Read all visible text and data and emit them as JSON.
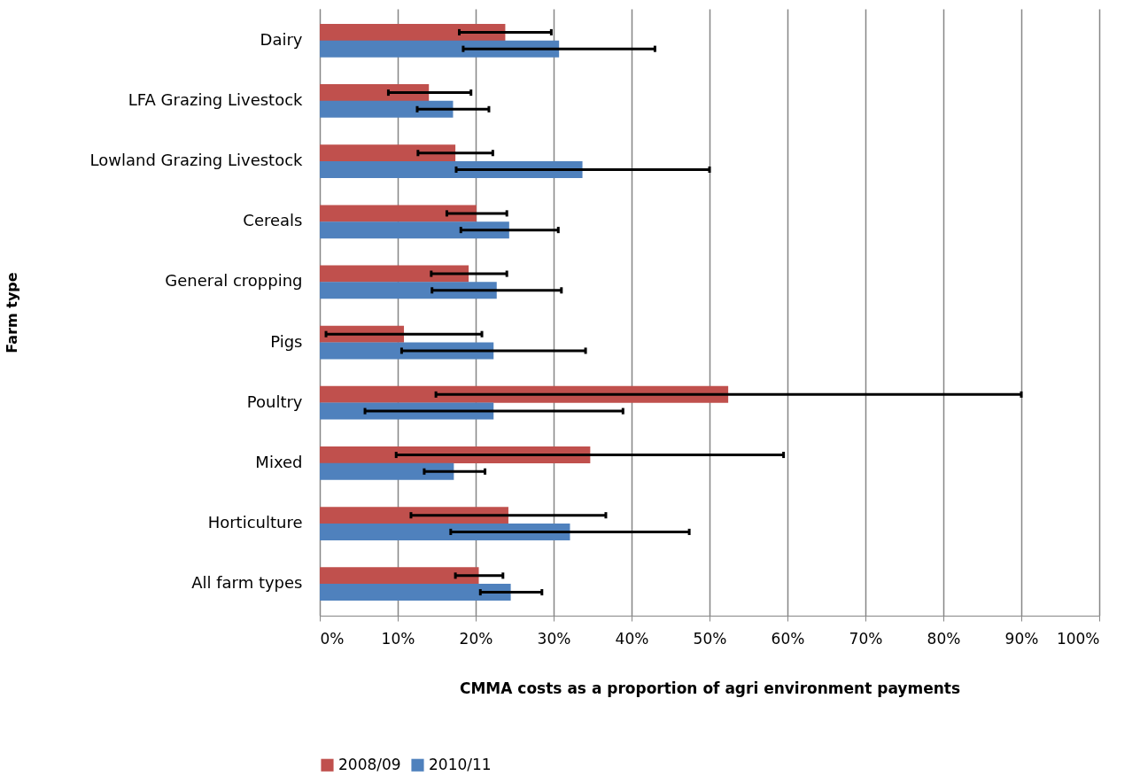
{
  "chart_data": {
    "type": "bar",
    "orientation": "horizontal",
    "xlabel": "CMMA costs as a proportion of agri environment payments",
    "ylabel": "Farm type",
    "categories": [
      "Dairy",
      "LFA Grazing Livestock",
      "Lowland Grazing Livestock",
      "Cereals",
      "General cropping",
      "Pigs",
      "Poultry",
      "Mixed",
      "Horticulture",
      "All farm types"
    ],
    "series": [
      {
        "name": "2008/09",
        "color": "#c0504d",
        "values": [
          23.8,
          14.0,
          17.4,
          20.1,
          19.1,
          10.8,
          52.4,
          34.7,
          24.2,
          20.4
        ],
        "errors": [
          [
            17.9,
            29.7
          ],
          [
            8.8,
            19.4
          ],
          [
            12.6,
            22.2
          ],
          [
            16.3,
            24.0
          ],
          [
            14.3,
            24.0
          ],
          [
            0.8,
            20.8
          ],
          [
            14.9,
            90.0
          ],
          [
            9.8,
            59.5
          ],
          [
            11.7,
            36.7
          ],
          [
            17.4,
            23.5
          ]
        ]
      },
      {
        "name": "2010/11",
        "color": "#4f81bd",
        "values": [
          30.7,
          17.1,
          33.7,
          24.3,
          22.7,
          22.3,
          22.3,
          17.2,
          32.1,
          24.5
        ],
        "errors": [
          [
            18.4,
            43.0
          ],
          [
            12.5,
            21.7
          ],
          [
            17.5,
            50.0
          ],
          [
            18.1,
            30.6
          ],
          [
            14.4,
            31.0
          ],
          [
            10.5,
            34.1
          ],
          [
            5.8,
            38.9
          ],
          [
            13.4,
            21.2
          ],
          [
            16.8,
            47.4
          ],
          [
            20.6,
            28.5
          ]
        ]
      }
    ],
    "xlim": [
      0,
      100
    ],
    "xticks": [
      {
        "value": 0,
        "label": "0%"
      },
      {
        "value": 10,
        "label": "10%"
      },
      {
        "value": 20,
        "label": "20%"
      },
      {
        "value": 30,
        "label": "30%"
      },
      {
        "value": 40,
        "label": "40%"
      },
      {
        "value": 50,
        "label": "50%"
      },
      {
        "value": 60,
        "label": "60%"
      },
      {
        "value": 70,
        "label": "70%"
      },
      {
        "value": 80,
        "label": "80%"
      },
      {
        "value": 90,
        "label": "90%"
      },
      {
        "value": 100,
        "label": "100%"
      }
    ],
    "grid": "x",
    "legend": "bottom"
  }
}
